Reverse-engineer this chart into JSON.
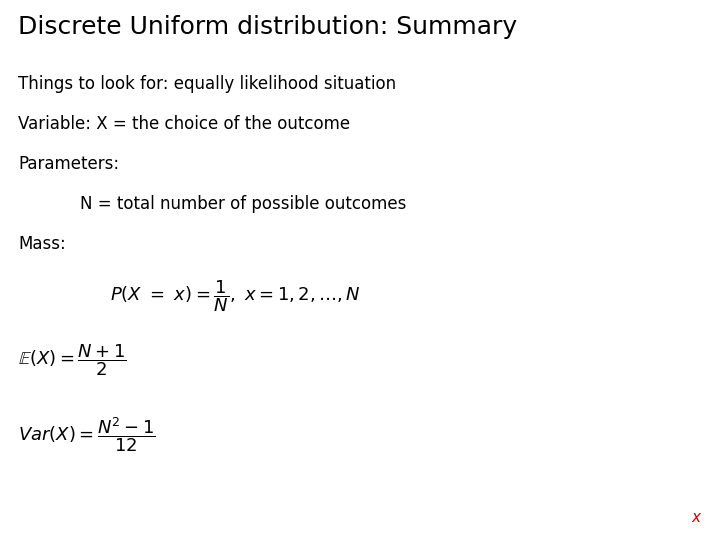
{
  "title": "Discrete Uniform distribution: Summary",
  "title_fontsize": 18,
  "title_color": "#000000",
  "background_color": "#ffffff",
  "text_color": "#000000",
  "red_color": "#cc0000",
  "line1": "Things to look for: equally likelihood situation",
  "line2": "Variable: X = the choice of the outcome",
  "line3": "Parameters:",
  "line4": "N = total number of possible outcomes",
  "line5": "Mass:",
  "watermark": "x",
  "text_fontsize": 12,
  "formula_fontsize": 13
}
